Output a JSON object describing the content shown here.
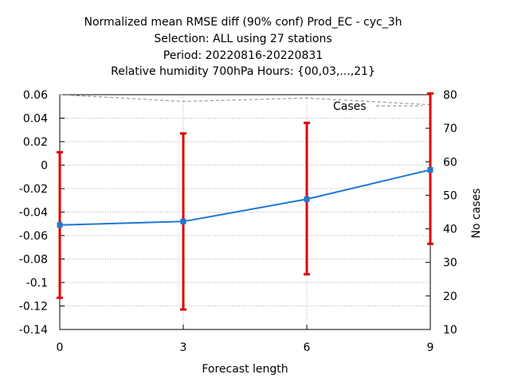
{
  "chart_data": {
    "type": "line",
    "title_lines": [
      "Normalized mean RMSE diff (90% conf) Prod_EC - cyc_3h",
      "Selection: ALL using    27 stations",
      "Period: 20220816-20220831",
      "Relative humidity 700hPa   Hours: {00,03,...,21}"
    ],
    "xlabel": "Forecast length",
    "ylabel": "",
    "y2label": "No cases",
    "x": [
      0,
      3,
      6,
      9
    ],
    "xlim": [
      0,
      9
    ],
    "ylim": [
      -0.14,
      0.06
    ],
    "y2lim": [
      10,
      80
    ],
    "x_ticks": [
      "0",
      "3",
      "6",
      "9"
    ],
    "y_ticks": [
      "0.06",
      "0.04",
      "0.02",
      "0",
      "-0.02",
      "-0.04",
      "-0.06",
      "-0.08",
      "-0.1",
      "-0.12",
      "-0.14"
    ],
    "y2_ticks": [
      "80",
      "70",
      "60",
      "50",
      "40",
      "30",
      "20",
      "10"
    ],
    "grid": true,
    "series": [
      {
        "name": "",
        "axis": "left",
        "style": "line+points",
        "color": "#1f77d4",
        "values": [
          -0.051,
          -0.048,
          -0.029,
          -0.004
        ]
      },
      {
        "name": "",
        "axis": "left",
        "style": "errorbars",
        "color": "#e00000",
        "low": [
          -0.113,
          -0.123,
          -0.093,
          -0.067
        ],
        "high": [
          0.011,
          0.027,
          0.036,
          0.061
        ]
      },
      {
        "name": "Cases",
        "axis": "right",
        "style": "dashed",
        "color": "#999999",
        "values": [
          80,
          78,
          79,
          77
        ]
      }
    ],
    "legend": {
      "position": "top-right",
      "label": "Cases"
    }
  }
}
